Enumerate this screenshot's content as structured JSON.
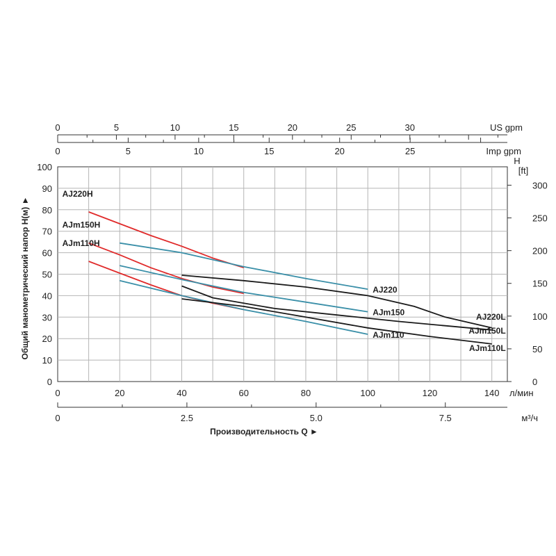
{
  "chart_data": {
    "type": "line",
    "title": "",
    "ylabel": "Общий манометрический напор H(м) ►",
    "ylabel_right": "[ft]",
    "ylabel_right_head": "H",
    "xlabel": "Производительность Q ►",
    "x_unit": "л/мин",
    "x2_unit": "м³/ч",
    "top1_unit": "US gpm",
    "top2_unit": "Imp gpm",
    "xlim": [
      0,
      145
    ],
    "ylim": [
      0,
      100
    ],
    "x_ticks": [
      0,
      20,
      40,
      60,
      80,
      100,
      120,
      140
    ],
    "y_ticks": [
      0,
      10,
      20,
      30,
      40,
      50,
      60,
      70,
      80,
      90,
      100
    ],
    "y_right_ticks": [
      0,
      50,
      100,
      150,
      200,
      250,
      300
    ],
    "m3h_ticks": [
      "0",
      "2.5",
      "5.0",
      "7.5"
    ],
    "usgpm_ticks": [
      "0",
      "5",
      "10",
      "15",
      "20",
      "25",
      "30"
    ],
    "impgpm_ticks": [
      "0",
      "5",
      "10",
      "15",
      "20",
      "25"
    ],
    "grid": true,
    "colors": {
      "h": "#e02a2a",
      "std": "#3a8fa8",
      "l": "#1a1a1a"
    },
    "series": [
      {
        "name": "AJ220H",
        "kind": "h",
        "points": [
          [
            10,
            79
          ],
          [
            20,
            73.5
          ],
          [
            30,
            68
          ],
          [
            40,
            63
          ],
          [
            50,
            57.5
          ],
          [
            60,
            53
          ]
        ]
      },
      {
        "name": "AJm150H",
        "kind": "h",
        "points": [
          [
            10,
            64.5
          ],
          [
            20,
            59
          ],
          [
            30,
            53
          ],
          [
            40,
            48
          ],
          [
            50,
            44
          ],
          [
            60,
            41
          ]
        ]
      },
      {
        "name": "AJm110H",
        "kind": "h",
        "points": [
          [
            10,
            56
          ],
          [
            20,
            50.5
          ],
          [
            30,
            45
          ],
          [
            40,
            40
          ],
          [
            50,
            36.5
          ],
          [
            60,
            33.5
          ]
        ]
      },
      {
        "name": "AJ220",
        "kind": "std",
        "points": [
          [
            20,
            64.5
          ],
          [
            40,
            60
          ],
          [
            60,
            53.5
          ],
          [
            80,
            48
          ],
          [
            100,
            43
          ]
        ]
      },
      {
        "name": "AJm150",
        "kind": "std",
        "points": [
          [
            20,
            54
          ],
          [
            40,
            47.5
          ],
          [
            60,
            41.5
          ],
          [
            80,
            37
          ],
          [
            100,
            32.5
          ]
        ]
      },
      {
        "name": "AJm110",
        "kind": "std",
        "points": [
          [
            20,
            47
          ],
          [
            40,
            40
          ],
          [
            60,
            33.5
          ],
          [
            80,
            28
          ],
          [
            100,
            22
          ]
        ]
      },
      {
        "name": "AJ220L",
        "kind": "l",
        "points": [
          [
            40,
            49.5
          ],
          [
            60,
            47
          ],
          [
            80,
            44
          ],
          [
            100,
            40
          ],
          [
            115,
            35
          ],
          [
            125,
            30
          ],
          [
            140,
            25
          ]
        ]
      },
      {
        "name": "AJm150L",
        "kind": "l",
        "points": [
          [
            40,
            44.5
          ],
          [
            50,
            39
          ],
          [
            70,
            34
          ],
          [
            90,
            31
          ],
          [
            110,
            28
          ],
          [
            125,
            26
          ],
          [
            140,
            24
          ]
        ]
      },
      {
        "name": "AJm110L",
        "kind": "l",
        "points": [
          [
            40,
            38.5
          ],
          [
            60,
            35
          ],
          [
            80,
            30
          ],
          [
            100,
            25
          ],
          [
            120,
            21
          ],
          [
            140,
            17.5
          ]
        ]
      }
    ]
  }
}
